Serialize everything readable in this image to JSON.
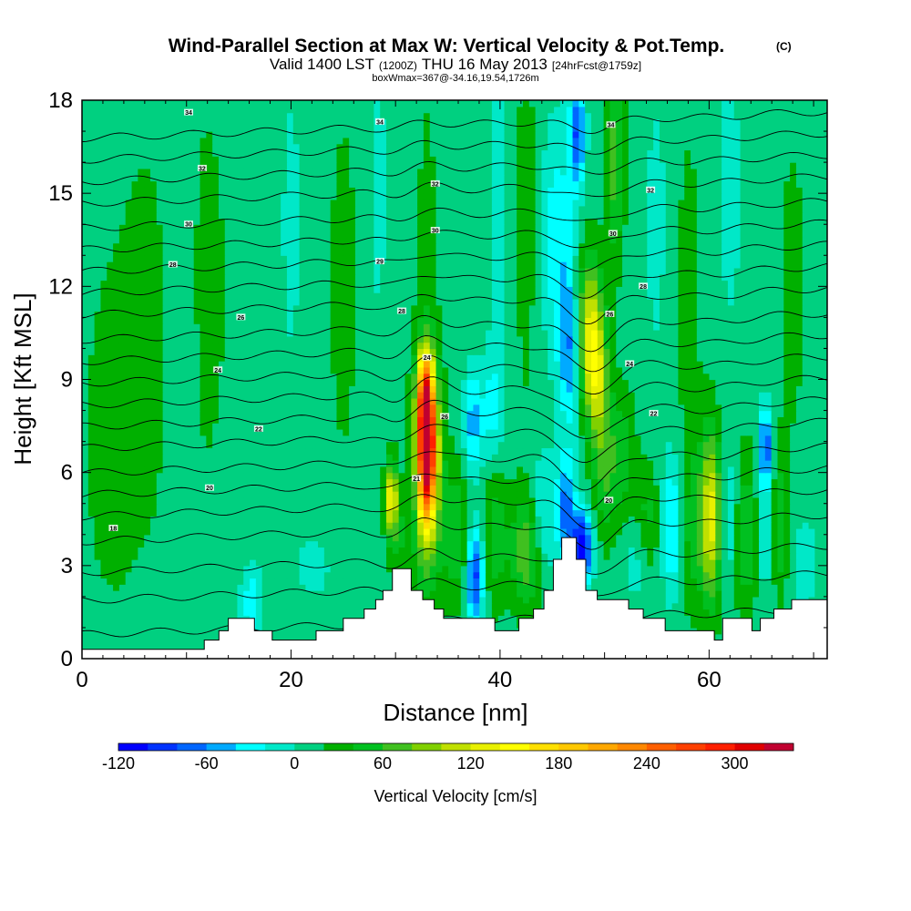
{
  "header": {
    "title_main": "Wind-Parallel Section at Max W: Vertical Velocity & Pot.Temp.",
    "title_mark": "(C)",
    "valid_prefix": "Valid 1400 LST",
    "valid_utc": "(1200Z)",
    "valid_date": "THU 16 May 2013",
    "forecast": "[24hrFcst@1759z]",
    "box_info": "boxWmax=367@-34.16,19.54,1726m"
  },
  "chart_data": {
    "type": "heatmap",
    "title": "Wind-Parallel Section at Max W: Vertical Velocity & Pot.Temp.",
    "xlabel": "Distance [nm]",
    "ylabel": "Height [Kft MSL]",
    "xlim": [
      0,
      71.3
    ],
    "ylim": [
      0,
      18
    ],
    "xticks": [
      "0",
      "20",
      "40",
      "60"
    ],
    "xtick_values": [
      0,
      20,
      40,
      60
    ],
    "yticks": [
      "0",
      "3",
      "6",
      "9",
      "12",
      "15",
      "18"
    ],
    "ytick_values": [
      0,
      3,
      6,
      9,
      12,
      15,
      18
    ],
    "colorbar": {
      "label": "Vertical Velocity [cm/s]",
      "levels": [
        -120,
        -100,
        -80,
        -60,
        -40,
        -20,
        0,
        20,
        40,
        60,
        80,
        100,
        120,
        140,
        160,
        180,
        200,
        220,
        240,
        260,
        280,
        300,
        320,
        340
      ],
      "tick_labels": [
        "-120",
        "-60",
        "0",
        "60",
        "120",
        "180",
        "240",
        "300"
      ],
      "tick_values": [
        -120,
        -60,
        0,
        60,
        120,
        180,
        240,
        300
      ],
      "colors": [
        "#0000ff",
        "#0033ff",
        "#0066ff",
        "#00aaff",
        "#00ffff",
        "#00e8c8",
        "#00d080",
        "#00b000",
        "#00c020",
        "#40c020",
        "#80d000",
        "#c0e000",
        "#e8f000",
        "#ffff00",
        "#ffe000",
        "#ffc800",
        "#ffa800",
        "#ff8800",
        "#ff6000",
        "#ff4000",
        "#ff2000",
        "#e00000",
        "#c00030"
      ]
    },
    "background_value": 10,
    "terrain": [
      [
        0,
        0.3
      ],
      [
        11.7,
        0.3
      ],
      [
        11.7,
        0.6
      ],
      [
        13.1,
        0.6
      ],
      [
        13.1,
        0.9
      ],
      [
        14.0,
        0.9
      ],
      [
        14.0,
        1.3
      ],
      [
        16.5,
        1.3
      ],
      [
        16.5,
        0.9
      ],
      [
        18.2,
        0.9
      ],
      [
        18.2,
        0.6
      ],
      [
        22.4,
        0.6
      ],
      [
        22.4,
        0.9
      ],
      [
        25.0,
        0.9
      ],
      [
        25.0,
        1.3
      ],
      [
        27.0,
        1.3
      ],
      [
        27.0,
        1.6
      ],
      [
        28.1,
        1.6
      ],
      [
        28.1,
        1.9
      ],
      [
        28.8,
        1.9
      ],
      [
        28.8,
        2.2
      ],
      [
        29.7,
        2.2
      ],
      [
        29.7,
        2.9
      ],
      [
        31.5,
        2.9
      ],
      [
        31.5,
        2.2
      ],
      [
        32.6,
        2.2
      ],
      [
        32.6,
        1.9
      ],
      [
        33.7,
        1.9
      ],
      [
        33.7,
        1.6
      ],
      [
        34.6,
        1.6
      ],
      [
        34.6,
        1.3
      ],
      [
        39.5,
        1.3
      ],
      [
        39.5,
        0.9
      ],
      [
        41.8,
        0.9
      ],
      [
        41.8,
        1.3
      ],
      [
        43.2,
        1.3
      ],
      [
        43.2,
        1.6
      ],
      [
        44.2,
        1.6
      ],
      [
        44.2,
        2.2
      ],
      [
        45.1,
        2.2
      ],
      [
        45.1,
        3.2
      ],
      [
        45.9,
        3.2
      ],
      [
        45.9,
        3.9
      ],
      [
        47.3,
        3.9
      ],
      [
        47.3,
        3.2
      ],
      [
        48.2,
        3.2
      ],
      [
        48.2,
        2.2
      ],
      [
        49.3,
        2.2
      ],
      [
        49.3,
        1.9
      ],
      [
        52.3,
        1.9
      ],
      [
        52.3,
        1.6
      ],
      [
        53.7,
        1.6
      ],
      [
        53.7,
        1.3
      ],
      [
        55.8,
        1.3
      ],
      [
        55.8,
        0.9
      ],
      [
        60.5,
        0.9
      ],
      [
        60.5,
        0.6
      ],
      [
        61.3,
        0.6
      ],
      [
        61.3,
        1.3
      ],
      [
        64.1,
        1.3
      ],
      [
        64.1,
        0.9
      ],
      [
        64.9,
        0.9
      ],
      [
        64.9,
        1.3
      ],
      [
        66.2,
        1.3
      ],
      [
        66.2,
        1.6
      ],
      [
        67.9,
        1.6
      ],
      [
        67.9,
        1.9
      ],
      [
        71.3,
        1.9
      ]
    ],
    "anomalies": [
      {
        "x": 33.0,
        "y": 6.9,
        "sx": 0.6,
        "sy": 1.6,
        "amp": 300
      },
      {
        "x": 33.0,
        "y": 6.0,
        "sx": 1.0,
        "sy": 2.6,
        "amp": 90
      },
      {
        "x": 32.8,
        "y": 8.6,
        "sx": 0.5,
        "sy": 0.9,
        "amp": 120
      },
      {
        "x": 29.6,
        "y": 5.2,
        "sx": 0.4,
        "sy": 0.8,
        "amp": 130
      },
      {
        "x": 31.2,
        "y": 4.5,
        "sx": 0.5,
        "sy": 1.3,
        "amp": -30
      },
      {
        "x": 30.6,
        "y": 4.0,
        "sx": 0.8,
        "sy": 1.2,
        "amp": 40
      },
      {
        "x": 37.6,
        "y": 2.7,
        "sx": 0.6,
        "sy": 1.1,
        "amp": -100
      },
      {
        "x": 37.4,
        "y": 7.6,
        "sx": 0.6,
        "sy": 1.2,
        "amp": -60
      },
      {
        "x": 39.2,
        "y": 8.0,
        "sx": 0.7,
        "sy": 1.3,
        "amp": -35
      },
      {
        "x": 35.8,
        "y": 4.0,
        "sx": 0.9,
        "sy": 1.5,
        "amp": 50
      },
      {
        "x": 39.6,
        "y": 4.0,
        "sx": 0.9,
        "sy": 1.6,
        "amp": 45
      },
      {
        "x": 42.6,
        "y": 3.5,
        "sx": 1.0,
        "sy": 1.3,
        "amp": 70
      },
      {
        "x": 44.0,
        "y": 4.6,
        "sx": 0.9,
        "sy": 1.4,
        "amp": -40
      },
      {
        "x": 46.3,
        "y": 4.8,
        "sx": 0.6,
        "sy": 1.2,
        "amp": -80
      },
      {
        "x": 47.8,
        "y": 3.6,
        "sx": 0.7,
        "sy": 0.8,
        "amp": -130
      },
      {
        "x": 46.6,
        "y": 10.0,
        "sx": 0.7,
        "sy": 1.7,
        "amp": -70
      },
      {
        "x": 48.6,
        "y": 10.6,
        "sx": 0.9,
        "sy": 1.7,
        "amp": 110
      },
      {
        "x": 49.3,
        "y": 9.0,
        "sx": 0.7,
        "sy": 1.3,
        "amp": 70
      },
      {
        "x": 45.5,
        "y": 13.5,
        "sx": 1.1,
        "sy": 2.5,
        "amp": -45
      },
      {
        "x": 47.4,
        "y": 17.0,
        "sx": 0.5,
        "sy": 1.3,
        "amp": -90
      },
      {
        "x": 51.0,
        "y": 16.0,
        "sx": 0.6,
        "sy": 2.2,
        "amp": 60
      },
      {
        "x": 51.8,
        "y": 6.5,
        "sx": 0.8,
        "sy": 1.5,
        "amp": 40
      },
      {
        "x": 50.0,
        "y": 6.4,
        "sx": 0.8,
        "sy": 1.7,
        "amp": 55
      },
      {
        "x": 53.0,
        "y": 3.5,
        "sx": 0.8,
        "sy": 1.2,
        "amp": -25
      },
      {
        "x": 54.0,
        "y": 4.6,
        "sx": 0.9,
        "sy": 1.2,
        "amp": 40
      },
      {
        "x": 56.5,
        "y": 4.3,
        "sx": 0.7,
        "sy": 1.5,
        "amp": -60
      },
      {
        "x": 60.2,
        "y": 4.6,
        "sx": 0.7,
        "sy": 1.9,
        "amp": 120
      },
      {
        "x": 58.4,
        "y": 4.3,
        "sx": 0.8,
        "sy": 1.8,
        "amp": 40
      },
      {
        "x": 61.9,
        "y": 4.5,
        "sx": 0.6,
        "sy": 1.5,
        "amp": -30
      },
      {
        "x": 63.6,
        "y": 4.0,
        "sx": 0.8,
        "sy": 1.9,
        "amp": 50
      },
      {
        "x": 65.4,
        "y": 6.9,
        "sx": 0.4,
        "sy": 0.9,
        "amp": -90
      },
      {
        "x": 65.3,
        "y": 4.2,
        "sx": 0.7,
        "sy": 1.6,
        "amp": -30
      },
      {
        "x": 66.8,
        "y": 4.2,
        "sx": 0.6,
        "sy": 1.6,
        "amp": 50
      },
      {
        "x": 68.9,
        "y": 3.2,
        "sx": 1.3,
        "sy": 1.3,
        "amp": -20
      },
      {
        "x": 22.5,
        "y": 3.0,
        "sx": 1.6,
        "sy": 1.0,
        "amp": -15
      },
      {
        "x": 16.2,
        "y": 1.8,
        "sx": 0.7,
        "sy": 0.8,
        "amp": -45
      },
      {
        "x": 6.0,
        "y": 10.0,
        "sx": 3.0,
        "sy": 7.0,
        "amp": 14
      },
      {
        "x": 2.5,
        "y": 7.0,
        "sx": 1.4,
        "sy": 3.0,
        "amp": 20
      },
      {
        "x": 12.0,
        "y": 12.0,
        "sx": 1.6,
        "sy": 5.0,
        "amp": 15
      },
      {
        "x": 9.6,
        "y": 10.0,
        "sx": 0.9,
        "sy": 6.0,
        "amp": -18
      },
      {
        "x": 20.0,
        "y": 14.0,
        "sx": 1.2,
        "sy": 6.0,
        "amp": -12
      },
      {
        "x": 25.0,
        "y": 12.0,
        "sx": 1.4,
        "sy": 6.0,
        "amp": 14
      },
      {
        "x": 28.3,
        "y": 15.0,
        "sx": 0.8,
        "sy": 4.0,
        "amp": -15
      },
      {
        "x": 33.0,
        "y": 14.0,
        "sx": 0.8,
        "sy": 4.0,
        "amp": 15
      },
      {
        "x": 40.0,
        "y": 14.0,
        "sx": 0.8,
        "sy": 4.5,
        "amp": -18
      },
      {
        "x": 42.5,
        "y": 14.0,
        "sx": 0.9,
        "sy": 5.0,
        "amp": 18
      },
      {
        "x": 55.0,
        "y": 14.0,
        "sx": 1.0,
        "sy": 4.0,
        "amp": -15
      },
      {
        "x": 58.0,
        "y": 12.0,
        "sx": 1.2,
        "sy": 5.0,
        "amp": 15
      },
      {
        "x": 62.0,
        "y": 15.0,
        "sx": 1.0,
        "sy": 4.0,
        "amp": -15
      },
      {
        "x": 68.0,
        "y": 12.0,
        "sx": 1.2,
        "sy": 5.0,
        "amp": 14
      }
    ],
    "isentropes": [
      {
        "base": 1.2,
        "bump": 0.3
      },
      {
        "base": 2.3,
        "bump": 0.5
      },
      {
        "base": 3.2,
        "bump": 0.6
      },
      {
        "base": 4.2,
        "bump": 0.7
      },
      {
        "base": 5.0,
        "bump": 0.8
      },
      {
        "base": 5.7,
        "bump": 0.9
      },
      {
        "base": 6.4,
        "bump": 1.0
      },
      {
        "base": 7.2,
        "bump": 1.0
      },
      {
        "base": 7.9,
        "bump": 1.0
      },
      {
        "base": 8.6,
        "bump": 1.0
      },
      {
        "base": 9.3,
        "bump": 0.9
      },
      {
        "base": 10.0,
        "bump": 0.8
      },
      {
        "base": 10.7,
        "bump": 0.8
      },
      {
        "base": 11.5,
        "bump": 0.7
      },
      {
        "base": 12.2,
        "bump": 0.6
      },
      {
        "base": 12.9,
        "bump": 0.5
      },
      {
        "base": 13.6,
        "bump": 0.5
      },
      {
        "base": 14.3,
        "bump": 0.4
      },
      {
        "base": 15.1,
        "bump": 0.4
      },
      {
        "base": 15.8,
        "bump": 0.3
      },
      {
        "base": 16.5,
        "bump": 0.3
      },
      {
        "base": 17.2,
        "bump": 0.3
      }
    ],
    "contour_labels": [
      {
        "x": 3.0,
        "y": 4.2,
        "text": "18"
      },
      {
        "x": 12.2,
        "y": 5.5,
        "text": "20"
      },
      {
        "x": 16.9,
        "y": 7.4,
        "text": "22"
      },
      {
        "x": 13.0,
        "y": 9.3,
        "text": "24"
      },
      {
        "x": 15.2,
        "y": 11.0,
        "text": "26"
      },
      {
        "x": 8.7,
        "y": 12.7,
        "text": "28"
      },
      {
        "x": 10.2,
        "y": 14.0,
        "text": "30"
      },
      {
        "x": 11.5,
        "y": 15.8,
        "text": "32"
      },
      {
        "x": 10.2,
        "y": 17.6,
        "text": "34"
      },
      {
        "x": 28.5,
        "y": 17.3,
        "text": "34"
      },
      {
        "x": 33.8,
        "y": 15.3,
        "text": "32"
      },
      {
        "x": 33.8,
        "y": 13.8,
        "text": "30"
      },
      {
        "x": 28.5,
        "y": 12.8,
        "text": "29"
      },
      {
        "x": 30.6,
        "y": 11.2,
        "text": "28"
      },
      {
        "x": 33.0,
        "y": 9.7,
        "text": "24"
      },
      {
        "x": 34.7,
        "y": 7.8,
        "text": "26"
      },
      {
        "x": 32.0,
        "y": 5.8,
        "text": "21"
      },
      {
        "x": 50.6,
        "y": 17.2,
        "text": "34"
      },
      {
        "x": 54.4,
        "y": 15.1,
        "text": "32"
      },
      {
        "x": 50.8,
        "y": 13.7,
        "text": "30"
      },
      {
        "x": 53.7,
        "y": 12.0,
        "text": "28"
      },
      {
        "x": 50.5,
        "y": 11.1,
        "text": "26"
      },
      {
        "x": 52.4,
        "y": 9.5,
        "text": "24"
      },
      {
        "x": 54.7,
        "y": 7.9,
        "text": "22"
      },
      {
        "x": 50.4,
        "y": 5.1,
        "text": "20"
      }
    ]
  }
}
